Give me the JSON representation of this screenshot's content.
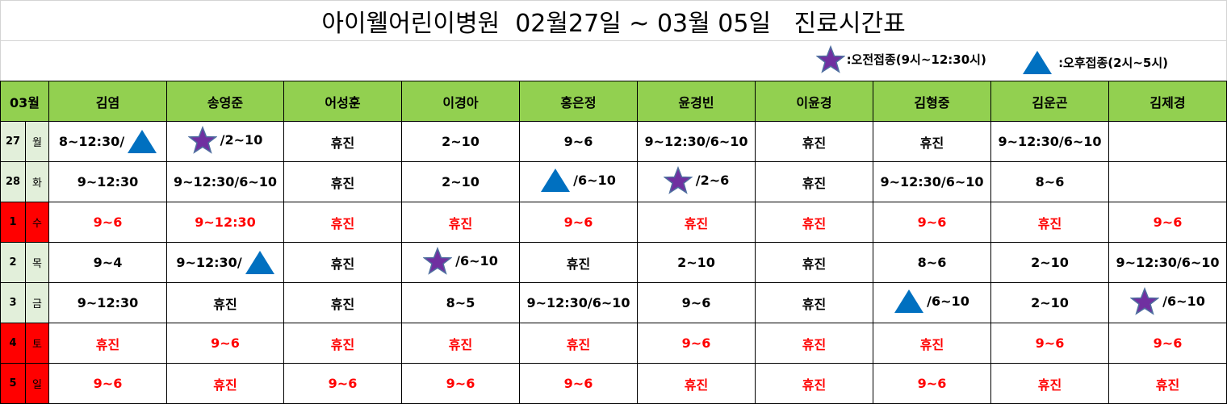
{
  "title": "아이웰어린이병원  02월27일 ~ 03월 05일   진료시간표",
  "legend": {
    "morning": {
      "icon": "star-icon",
      "label": ":오전접종(9시~12:30시)"
    },
    "afternoon": {
      "icon": "triangle-icon",
      "label": ":오후접종(2시~5시)"
    }
  },
  "colors": {
    "header_bg": "#92d050",
    "weekday_bg": "#e2efda",
    "holiday_bg": "#ff0000",
    "holiday_text": "#ff0000",
    "star": "#7030a0",
    "triangle": "#0070c0"
  },
  "header": {
    "month": "03월",
    "doctors": [
      "김염",
      "송영준",
      "어성훈",
      "이경아",
      "홍은정",
      "윤경빈",
      "이윤경",
      "김형중",
      "김운곤",
      "김제경"
    ]
  },
  "rows": [
    {
      "date": "27",
      "day": "월",
      "holiday": false,
      "cells": [
        {
          "text": "8~12:30/",
          "after": "triangle"
        },
        {
          "text": "/2~10",
          "before": "star"
        },
        {
          "text": "휴진"
        },
        {
          "text": "2~10"
        },
        {
          "text": "9~6"
        },
        {
          "text": "9~12:30/6~10"
        },
        {
          "text": "휴진"
        },
        {
          "text": "휴진"
        },
        {
          "text": "9~12:30/6~10"
        },
        {
          "text": ""
        }
      ]
    },
    {
      "date": "28",
      "day": "화",
      "holiday": false,
      "cells": [
        {
          "text": "9~12:30"
        },
        {
          "text": "9~12:30/6~10"
        },
        {
          "text": "휴진"
        },
        {
          "text": "2~10"
        },
        {
          "text": "/6~10",
          "before": "triangle"
        },
        {
          "text": "/2~6",
          "before": "star"
        },
        {
          "text": "휴진"
        },
        {
          "text": "9~12:30/6~10"
        },
        {
          "text": "8~6"
        },
        {
          "text": ""
        }
      ]
    },
    {
      "date": "1",
      "day": "수",
      "holiday": true,
      "cells": [
        {
          "text": "9~6"
        },
        {
          "text": "9~12:30"
        },
        {
          "text": "휴진"
        },
        {
          "text": "휴진"
        },
        {
          "text": "9~6"
        },
        {
          "text": "휴진"
        },
        {
          "text": "휴진"
        },
        {
          "text": "9~6"
        },
        {
          "text": "휴진"
        },
        {
          "text": "9~6"
        }
      ]
    },
    {
      "date": "2",
      "day": "목",
      "holiday": false,
      "cells": [
        {
          "text": "9~4"
        },
        {
          "text": "9~12:30/",
          "after": "triangle"
        },
        {
          "text": "휴진"
        },
        {
          "text": "/6~10",
          "before": "star"
        },
        {
          "text": "휴진"
        },
        {
          "text": "2~10"
        },
        {
          "text": "휴진"
        },
        {
          "text": "8~6"
        },
        {
          "text": "2~10"
        },
        {
          "text": "9~12:30/6~10"
        }
      ]
    },
    {
      "date": "3",
      "day": "금",
      "holiday": false,
      "cells": [
        {
          "text": "9~12:30"
        },
        {
          "text": "휴진"
        },
        {
          "text": "휴진"
        },
        {
          "text": "8~5"
        },
        {
          "text": "9~12:30/6~10"
        },
        {
          "text": "9~6"
        },
        {
          "text": "휴진"
        },
        {
          "text": "/6~10",
          "before": "triangle"
        },
        {
          "text": "2~10"
        },
        {
          "text": "/6~10",
          "before": "star"
        }
      ]
    },
    {
      "date": "4",
      "day": "토",
      "holiday": true,
      "cells": [
        {
          "text": "휴진"
        },
        {
          "text": "9~6"
        },
        {
          "text": "휴진"
        },
        {
          "text": "휴진"
        },
        {
          "text": "휴진"
        },
        {
          "text": "9~6"
        },
        {
          "text": "휴진"
        },
        {
          "text": "휴진"
        },
        {
          "text": "9~6"
        },
        {
          "text": "9~6"
        }
      ]
    },
    {
      "date": "5",
      "day": "일",
      "holiday": true,
      "cells": [
        {
          "text": "9~6"
        },
        {
          "text": "휴진"
        },
        {
          "text": "9~6"
        },
        {
          "text": "9~6"
        },
        {
          "text": "9~6"
        },
        {
          "text": "휴진"
        },
        {
          "text": "휴진"
        },
        {
          "text": "9~6"
        },
        {
          "text": "휴진"
        },
        {
          "text": "휴진"
        }
      ]
    }
  ]
}
